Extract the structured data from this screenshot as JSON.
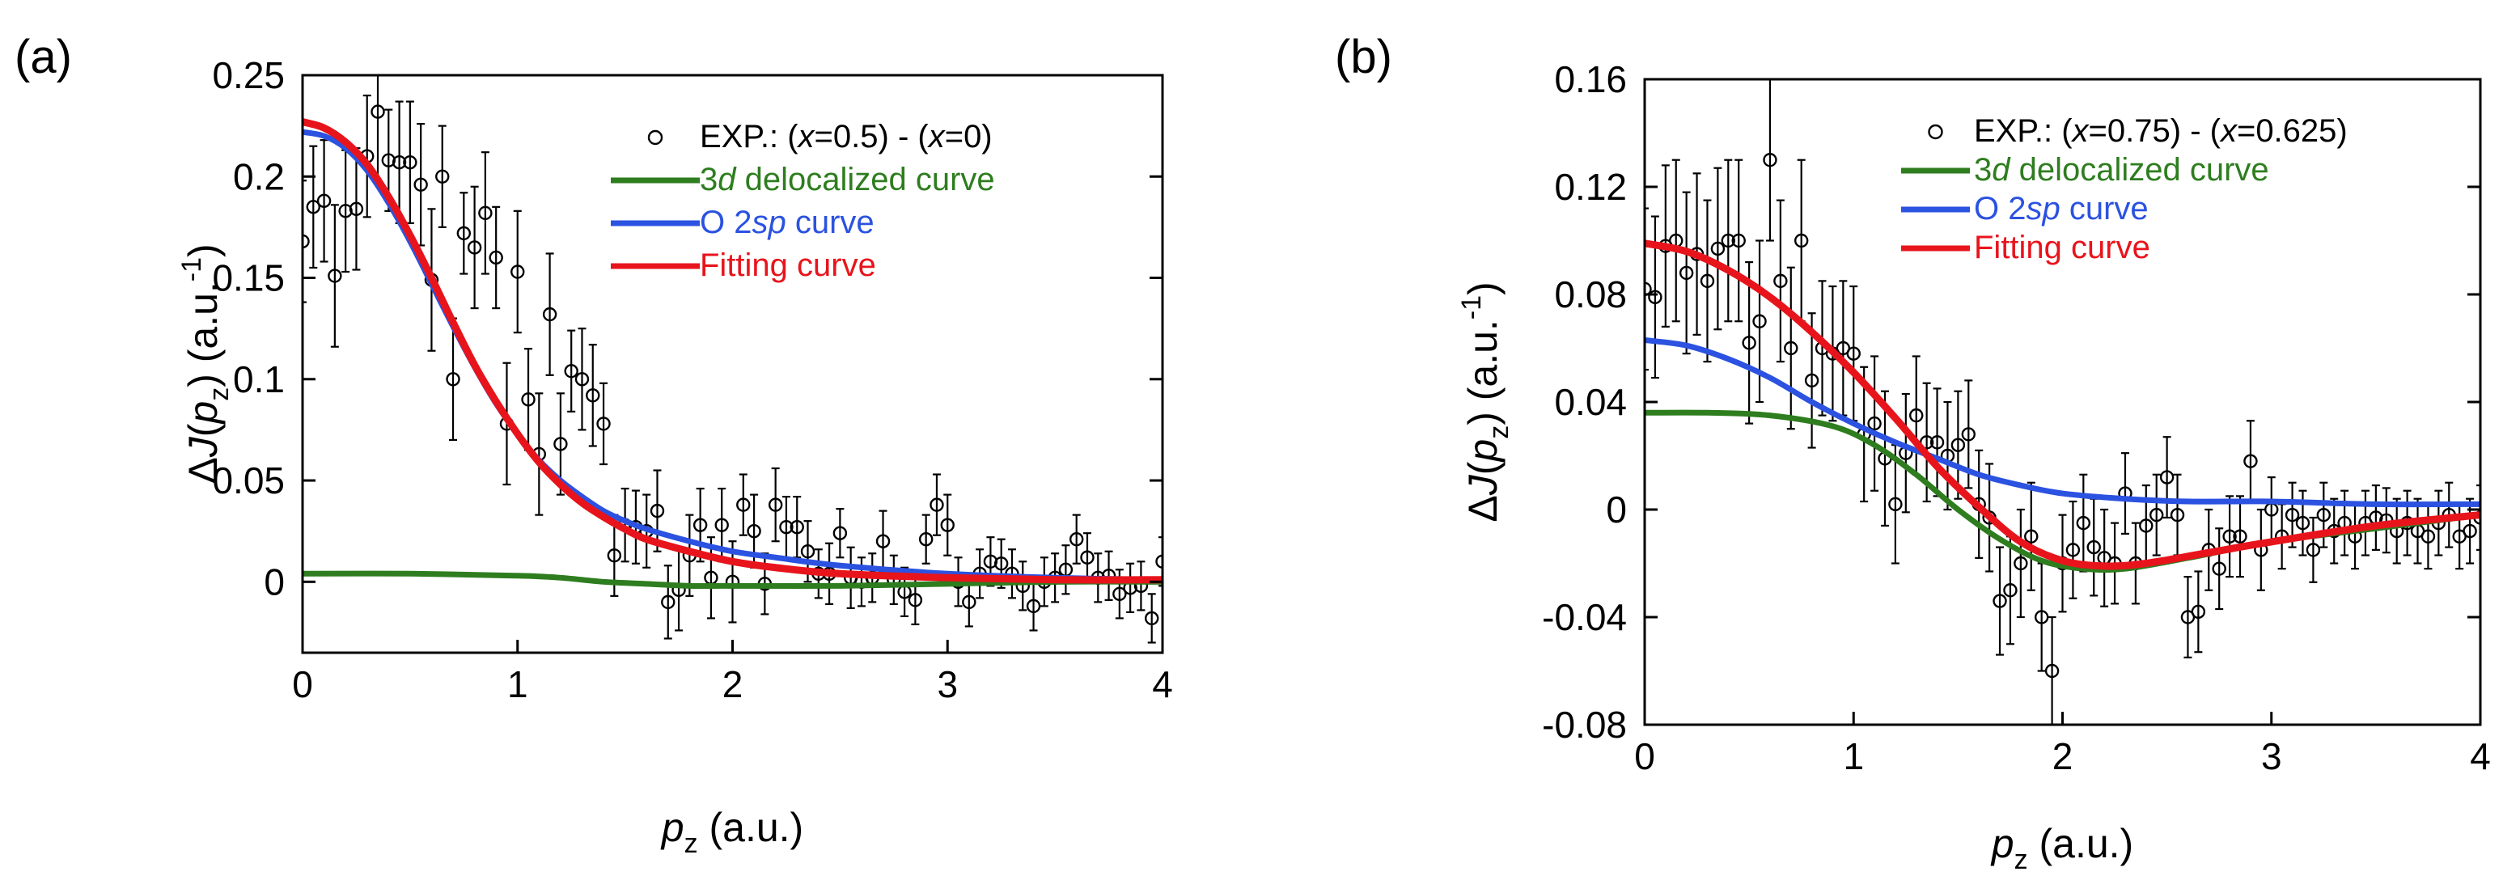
{
  "chart_data": [
    {
      "type": "scatter",
      "panel_label": "(a)",
      "ylabel": "ΔJ(pz) (a.u.⁻¹)",
      "ylabel_parts": {
        "prefix": "ΔJ(",
        "var": "p",
        "sub": "z",
        "mid": ") (a.u.",
        "sup": "-1",
        "suffix": ")"
      },
      "xlabel": "pz (a.u.)",
      "xlabel_parts": {
        "var": "p",
        "sub": "z",
        "rest": " (a.u.)"
      },
      "xlim": [
        0,
        4
      ],
      "ylim": [
        -0.035,
        0.25
      ],
      "xticks": [
        0,
        1,
        2,
        3,
        4
      ],
      "xtick_labels": [
        "0",
        "1",
        "2",
        "3",
        "4"
      ],
      "yticks": [
        0,
        0.05,
        0.1,
        0.15,
        0.2,
        0.25
      ],
      "ytick_labels": [
        "0",
        "0.05",
        "0.1",
        "0.15",
        "0.2",
        "0.25"
      ],
      "legend_position": "top-right",
      "legend": [
        {
          "key": "exp",
          "kind": "marker",
          "parts": [
            {
              "t": "EXP.: ("
            },
            {
              "t": "x",
              "i": true
            },
            {
              "t": "=0.5) - ("
            },
            {
              "t": "x",
              "i": true
            },
            {
              "t": "=0)"
            }
          ],
          "color": "#000000"
        },
        {
          "key": "d3",
          "kind": "line",
          "parts": [
            {
              "t": "3"
            },
            {
              "t": "d",
              "i": true
            },
            {
              "t": " delocalized curve"
            }
          ],
          "color": "#2e7d1f"
        },
        {
          "key": "o2sp",
          "kind": "line",
          "parts": [
            {
              "t": "O 2"
            },
            {
              "t": "sp",
              "i": true
            },
            {
              "t": " curve"
            }
          ],
          "color": "#2b52e0"
        },
        {
          "key": "fit",
          "kind": "line",
          "parts": [
            {
              "t": "Fitting curve"
            }
          ],
          "color": "#e8141c"
        }
      ],
      "series": [
        {
          "name": "EXP.: (x=0.5) - (x=0)",
          "kind": "points",
          "x": [
            0.0,
            0.05,
            0.1,
            0.15,
            0.2,
            0.25,
            0.3,
            0.35,
            0.4,
            0.45,
            0.5,
            0.55,
            0.6,
            0.65,
            0.7,
            0.75,
            0.8,
            0.85,
            0.9,
            0.95,
            1.0,
            1.05,
            1.1,
            1.15,
            1.2,
            1.25,
            1.3,
            1.35,
            1.4,
            1.45,
            1.5,
            1.55,
            1.6,
            1.65,
            1.7,
            1.75,
            1.8,
            1.85,
            1.9,
            1.95,
            2.0,
            2.05,
            2.1,
            2.15,
            2.2,
            2.25,
            2.3,
            2.35,
            2.4,
            2.45,
            2.5,
            2.55,
            2.6,
            2.65,
            2.7,
            2.75,
            2.8,
            2.85,
            2.9,
            2.95,
            3.0,
            3.05,
            3.1,
            3.15,
            3.2,
            3.25,
            3.3,
            3.35,
            3.4,
            3.45,
            3.5,
            3.55,
            3.6,
            3.65,
            3.7,
            3.75,
            3.8,
            3.85,
            3.9,
            3.95,
            4.0
          ],
          "y": [
            0.168,
            0.185,
            0.188,
            0.151,
            0.183,
            0.184,
            0.21,
            0.232,
            0.208,
            0.207,
            0.207,
            0.196,
            0.149,
            0.2,
            0.1,
            0.172,
            0.165,
            0.182,
            0.16,
            0.078,
            0.153,
            0.09,
            0.063,
            0.132,
            0.068,
            0.104,
            0.1,
            0.092,
            0.078,
            0.013,
            0.028,
            0.027,
            0.025,
            0.035,
            -0.01,
            -0.004,
            0.013,
            0.028,
            0.002,
            0.028,
            0.0,
            0.038,
            0.025,
            -0.001,
            0.038,
            0.027,
            0.027,
            0.015,
            0.004,
            0.004,
            0.024,
            0.002,
            0.0,
            0.002,
            0.02,
            0.001,
            -0.005,
            -0.009,
            0.021,
            0.038,
            0.028,
            0.0,
            -0.01,
            0.004,
            0.01,
            0.009,
            0.004,
            -0.002,
            -0.012,
            0.0,
            0.002,
            0.006,
            0.021,
            0.012,
            0.002,
            0.003,
            -0.006,
            -0.003,
            -0.002,
            -0.018,
            0.01
          ],
          "err": [
            0.03,
            0.03,
            0.03,
            0.035,
            0.03,
            0.03,
            0.03,
            0.035,
            0.025,
            0.03,
            0.03,
            0.03,
            0.035,
            0.025,
            0.03,
            0.02,
            0.03,
            0.03,
            0.025,
            0.03,
            0.03,
            0.025,
            0.03,
            0.03,
            0.025,
            0.02,
            0.025,
            0.025,
            0.02,
            0.02,
            0.018,
            0.018,
            0.018,
            0.02,
            0.018,
            0.02,
            0.02,
            0.018,
            0.02,
            0.018,
            0.02,
            0.015,
            0.018,
            0.015,
            0.018,
            0.015,
            0.015,
            0.015,
            0.012,
            0.015,
            0.012,
            0.015,
            0.012,
            0.012,
            0.015,
            0.012,
            0.012,
            0.012,
            0.012,
            0.015,
            0.015,
            0.012,
            0.012,
            0.012,
            0.012,
            0.012,
            0.012,
            0.012,
            0.012,
            0.012,
            0.012,
            0.012,
            0.012,
            0.012,
            0.012,
            0.012,
            0.012,
            0.012,
            0.012,
            0.012,
            0.012
          ]
        },
        {
          "name": "3d delocalized curve",
          "kind": "line",
          "color": "#2e7d1f",
          "x": [
            0,
            0.5,
            1.0,
            1.2,
            1.4,
            1.6,
            1.8,
            2.0,
            2.5,
            3.0,
            3.5,
            4.0
          ],
          "y": [
            0.004,
            0.004,
            0.003,
            0.002,
            0.0,
            -0.001,
            -0.002,
            -0.002,
            -0.002,
            -0.001,
            0.0,
            0.0
          ]
        },
        {
          "name": "O 2sp curve",
          "kind": "line",
          "color": "#2b52e0",
          "x": [
            0,
            0.1,
            0.2,
            0.3,
            0.4,
            0.5,
            0.6,
            0.7,
            0.8,
            0.9,
            1.0,
            1.1,
            1.2,
            1.3,
            1.4,
            1.5,
            1.6,
            1.8,
            2.0,
            2.2,
            2.5,
            3.0,
            3.5,
            4.0
          ],
          "y": [
            0.222,
            0.22,
            0.214,
            0.203,
            0.187,
            0.168,
            0.147,
            0.126,
            0.106,
            0.088,
            0.073,
            0.06,
            0.05,
            0.042,
            0.035,
            0.03,
            0.026,
            0.02,
            0.015,
            0.012,
            0.008,
            0.004,
            0.002,
            0.001
          ]
        },
        {
          "name": "Fitting curve",
          "kind": "line",
          "color": "#e8141c",
          "x": [
            0,
            0.1,
            0.2,
            0.3,
            0.4,
            0.5,
            0.6,
            0.7,
            0.8,
            0.9,
            1.0,
            1.1,
            1.2,
            1.3,
            1.4,
            1.5,
            1.6,
            1.8,
            2.0,
            2.2,
            2.5,
            3.0,
            3.5,
            4.0
          ],
          "y": [
            0.227,
            0.224,
            0.217,
            0.206,
            0.19,
            0.171,
            0.15,
            0.128,
            0.107,
            0.089,
            0.073,
            0.059,
            0.048,
            0.039,
            0.032,
            0.026,
            0.021,
            0.015,
            0.01,
            0.007,
            0.004,
            0.002,
            0.001,
            0.001
          ]
        }
      ]
    },
    {
      "type": "scatter",
      "panel_label": "(b)",
      "ylabel": "ΔJ(pz) (a.u.⁻¹)",
      "ylabel_parts": {
        "prefix": "ΔJ(",
        "var": "p",
        "sub": "z",
        "mid": ") (a.u.",
        "sup": "-1",
        "suffix": ")"
      },
      "xlabel": "pz (a.u.)",
      "xlabel_parts": {
        "var": "p",
        "sub": "z",
        "rest": " (a.u.)"
      },
      "xlim": [
        0,
        4
      ],
      "ylim": [
        -0.08,
        0.16
      ],
      "xticks": [
        0,
        1,
        2,
        3,
        4
      ],
      "xtick_labels": [
        "0",
        "1",
        "2",
        "3",
        "4"
      ],
      "yticks": [
        -0.08,
        -0.04,
        0,
        0.04,
        0.08,
        0.12,
        0.16
      ],
      "ytick_labels": [
        "-0.08",
        "-0.04",
        "0",
        "0.04",
        "0.08",
        "0.12",
        "0.16"
      ],
      "legend_position": "top-right",
      "legend": [
        {
          "key": "exp",
          "kind": "marker",
          "parts": [
            {
              "t": "EXP.: ("
            },
            {
              "t": "x",
              "i": true
            },
            {
              "t": "=0.75) - ("
            },
            {
              "t": "x",
              "i": true
            },
            {
              "t": "=0.625)"
            }
          ],
          "color": "#000000"
        },
        {
          "key": "d3",
          "kind": "line",
          "parts": [
            {
              "t": "3"
            },
            {
              "t": "d",
              "i": true
            },
            {
              "t": " delocalized curve"
            }
          ],
          "color": "#2e7d1f"
        },
        {
          "key": "o2sp",
          "kind": "line",
          "parts": [
            {
              "t": "O 2"
            },
            {
              "t": "sp",
              "i": true
            },
            {
              "t": " curve"
            }
          ],
          "color": "#2b52e0"
        },
        {
          "key": "fit",
          "kind": "line",
          "parts": [
            {
              "t": "Fitting curve"
            }
          ],
          "color": "#e8141c"
        }
      ],
      "series": [
        {
          "name": "EXP.: (x=0.75) - (x=0.625)",
          "kind": "points",
          "x": [
            0.0,
            0.05,
            0.1,
            0.15,
            0.2,
            0.25,
            0.3,
            0.35,
            0.4,
            0.45,
            0.5,
            0.55,
            0.6,
            0.65,
            0.7,
            0.75,
            0.8,
            0.85,
            0.9,
            0.95,
            1.0,
            1.05,
            1.1,
            1.15,
            1.2,
            1.25,
            1.3,
            1.35,
            1.4,
            1.45,
            1.5,
            1.55,
            1.6,
            1.65,
            1.7,
            1.75,
            1.8,
            1.85,
            1.9,
            1.95,
            2.0,
            2.05,
            2.1,
            2.15,
            2.2,
            2.25,
            2.3,
            2.35,
            2.4,
            2.45,
            2.5,
            2.55,
            2.6,
            2.65,
            2.7,
            2.75,
            2.8,
            2.85,
            2.9,
            2.95,
            3.0,
            3.05,
            3.1,
            3.15,
            3.2,
            3.25,
            3.3,
            3.35,
            3.4,
            3.45,
            3.5,
            3.55,
            3.6,
            3.65,
            3.7,
            3.75,
            3.8,
            3.85,
            3.9,
            3.95,
            4.0
          ],
          "y": [
            0.082,
            0.079,
            0.098,
            0.1,
            0.088,
            0.095,
            0.085,
            0.097,
            0.1,
            0.1,
            0.062,
            0.07,
            0.13,
            0.085,
            0.06,
            0.1,
            0.048,
            0.06,
            0.058,
            0.06,
            0.058,
            0.028,
            0.032,
            0.019,
            0.002,
            0.021,
            0.035,
            0.025,
            0.025,
            0.02,
            0.024,
            0.028,
            0.002,
            -0.003,
            -0.034,
            -0.03,
            -0.02,
            -0.01,
            -0.04,
            -0.06,
            -0.02,
            -0.015,
            -0.005,
            -0.014,
            -0.018,
            -0.02,
            0.006,
            -0.02,
            -0.006,
            -0.002,
            0.012,
            -0.002,
            -0.04,
            -0.038,
            -0.015,
            -0.022,
            -0.01,
            -0.01,
            0.018,
            -0.015,
            0.0,
            -0.01,
            -0.002,
            -0.005,
            -0.015,
            -0.002,
            -0.008,
            -0.005,
            -0.01,
            -0.005,
            -0.003,
            -0.004,
            -0.008,
            -0.005,
            -0.008,
            -0.01,
            -0.005,
            -0.002,
            -0.01,
            -0.008,
            -0.003
          ],
          "err": [
            0.03,
            0.03,
            0.03,
            0.03,
            0.03,
            0.03,
            0.03,
            0.03,
            0.03,
            0.03,
            0.03,
            0.03,
            0.03,
            0.03,
            0.03,
            0.03,
            0.025,
            0.025,
            0.025,
            0.025,
            0.025,
            0.025,
            0.025,
            0.025,
            0.022,
            0.022,
            0.022,
            0.022,
            0.02,
            0.02,
            0.02,
            0.02,
            0.02,
            0.02,
            0.02,
            0.02,
            0.02,
            0.02,
            0.02,
            0.02,
            0.018,
            0.018,
            0.018,
            0.018,
            0.018,
            0.015,
            0.015,
            0.015,
            0.015,
            0.015,
            0.015,
            0.015,
            0.015,
            0.015,
            0.015,
            0.015,
            0.015,
            0.015,
            0.015,
            0.015,
            0.012,
            0.012,
            0.012,
            0.012,
            0.012,
            0.012,
            0.012,
            0.012,
            0.012,
            0.012,
            0.012,
            0.012,
            0.012,
            0.012,
            0.012,
            0.012,
            0.012,
            0.012,
            0.012,
            0.012,
            0.012
          ]
        },
        {
          "name": "3d delocalized curve",
          "kind": "line",
          "color": "#2e7d1f",
          "x": [
            0,
            0.3,
            0.6,
            0.9,
            1.1,
            1.3,
            1.5,
            1.7,
            1.9,
            2.1,
            2.3,
            2.6,
            3.0,
            3.5,
            4.0
          ],
          "y": [
            0.036,
            0.036,
            0.035,
            0.031,
            0.024,
            0.013,
            0.0,
            -0.011,
            -0.019,
            -0.022,
            -0.022,
            -0.018,
            -0.012,
            -0.007,
            -0.002
          ]
        },
        {
          "name": "O 2sp curve",
          "kind": "line",
          "color": "#2b52e0",
          "x": [
            0,
            0.2,
            0.4,
            0.6,
            0.8,
            1.0,
            1.2,
            1.4,
            1.6,
            1.8,
            2.0,
            2.3,
            2.6,
            3.0,
            3.5,
            4.0
          ],
          "y": [
            0.063,
            0.061,
            0.056,
            0.049,
            0.04,
            0.032,
            0.025,
            0.019,
            0.013,
            0.009,
            0.006,
            0.004,
            0.003,
            0.003,
            0.002,
            0.002
          ]
        },
        {
          "name": "Fitting curve",
          "kind": "line",
          "color": "#e8141c",
          "x": [
            0,
            0.2,
            0.4,
            0.6,
            0.8,
            1.0,
            1.2,
            1.4,
            1.6,
            1.8,
            2.0,
            2.2,
            2.4,
            2.7,
            3.0,
            3.5,
            4.0
          ],
          "y": [
            0.099,
            0.096,
            0.089,
            0.079,
            0.066,
            0.051,
            0.034,
            0.016,
            0.001,
            -0.012,
            -0.019,
            -0.021,
            -0.02,
            -0.016,
            -0.012,
            -0.006,
            -0.002
          ]
        }
      ]
    }
  ]
}
